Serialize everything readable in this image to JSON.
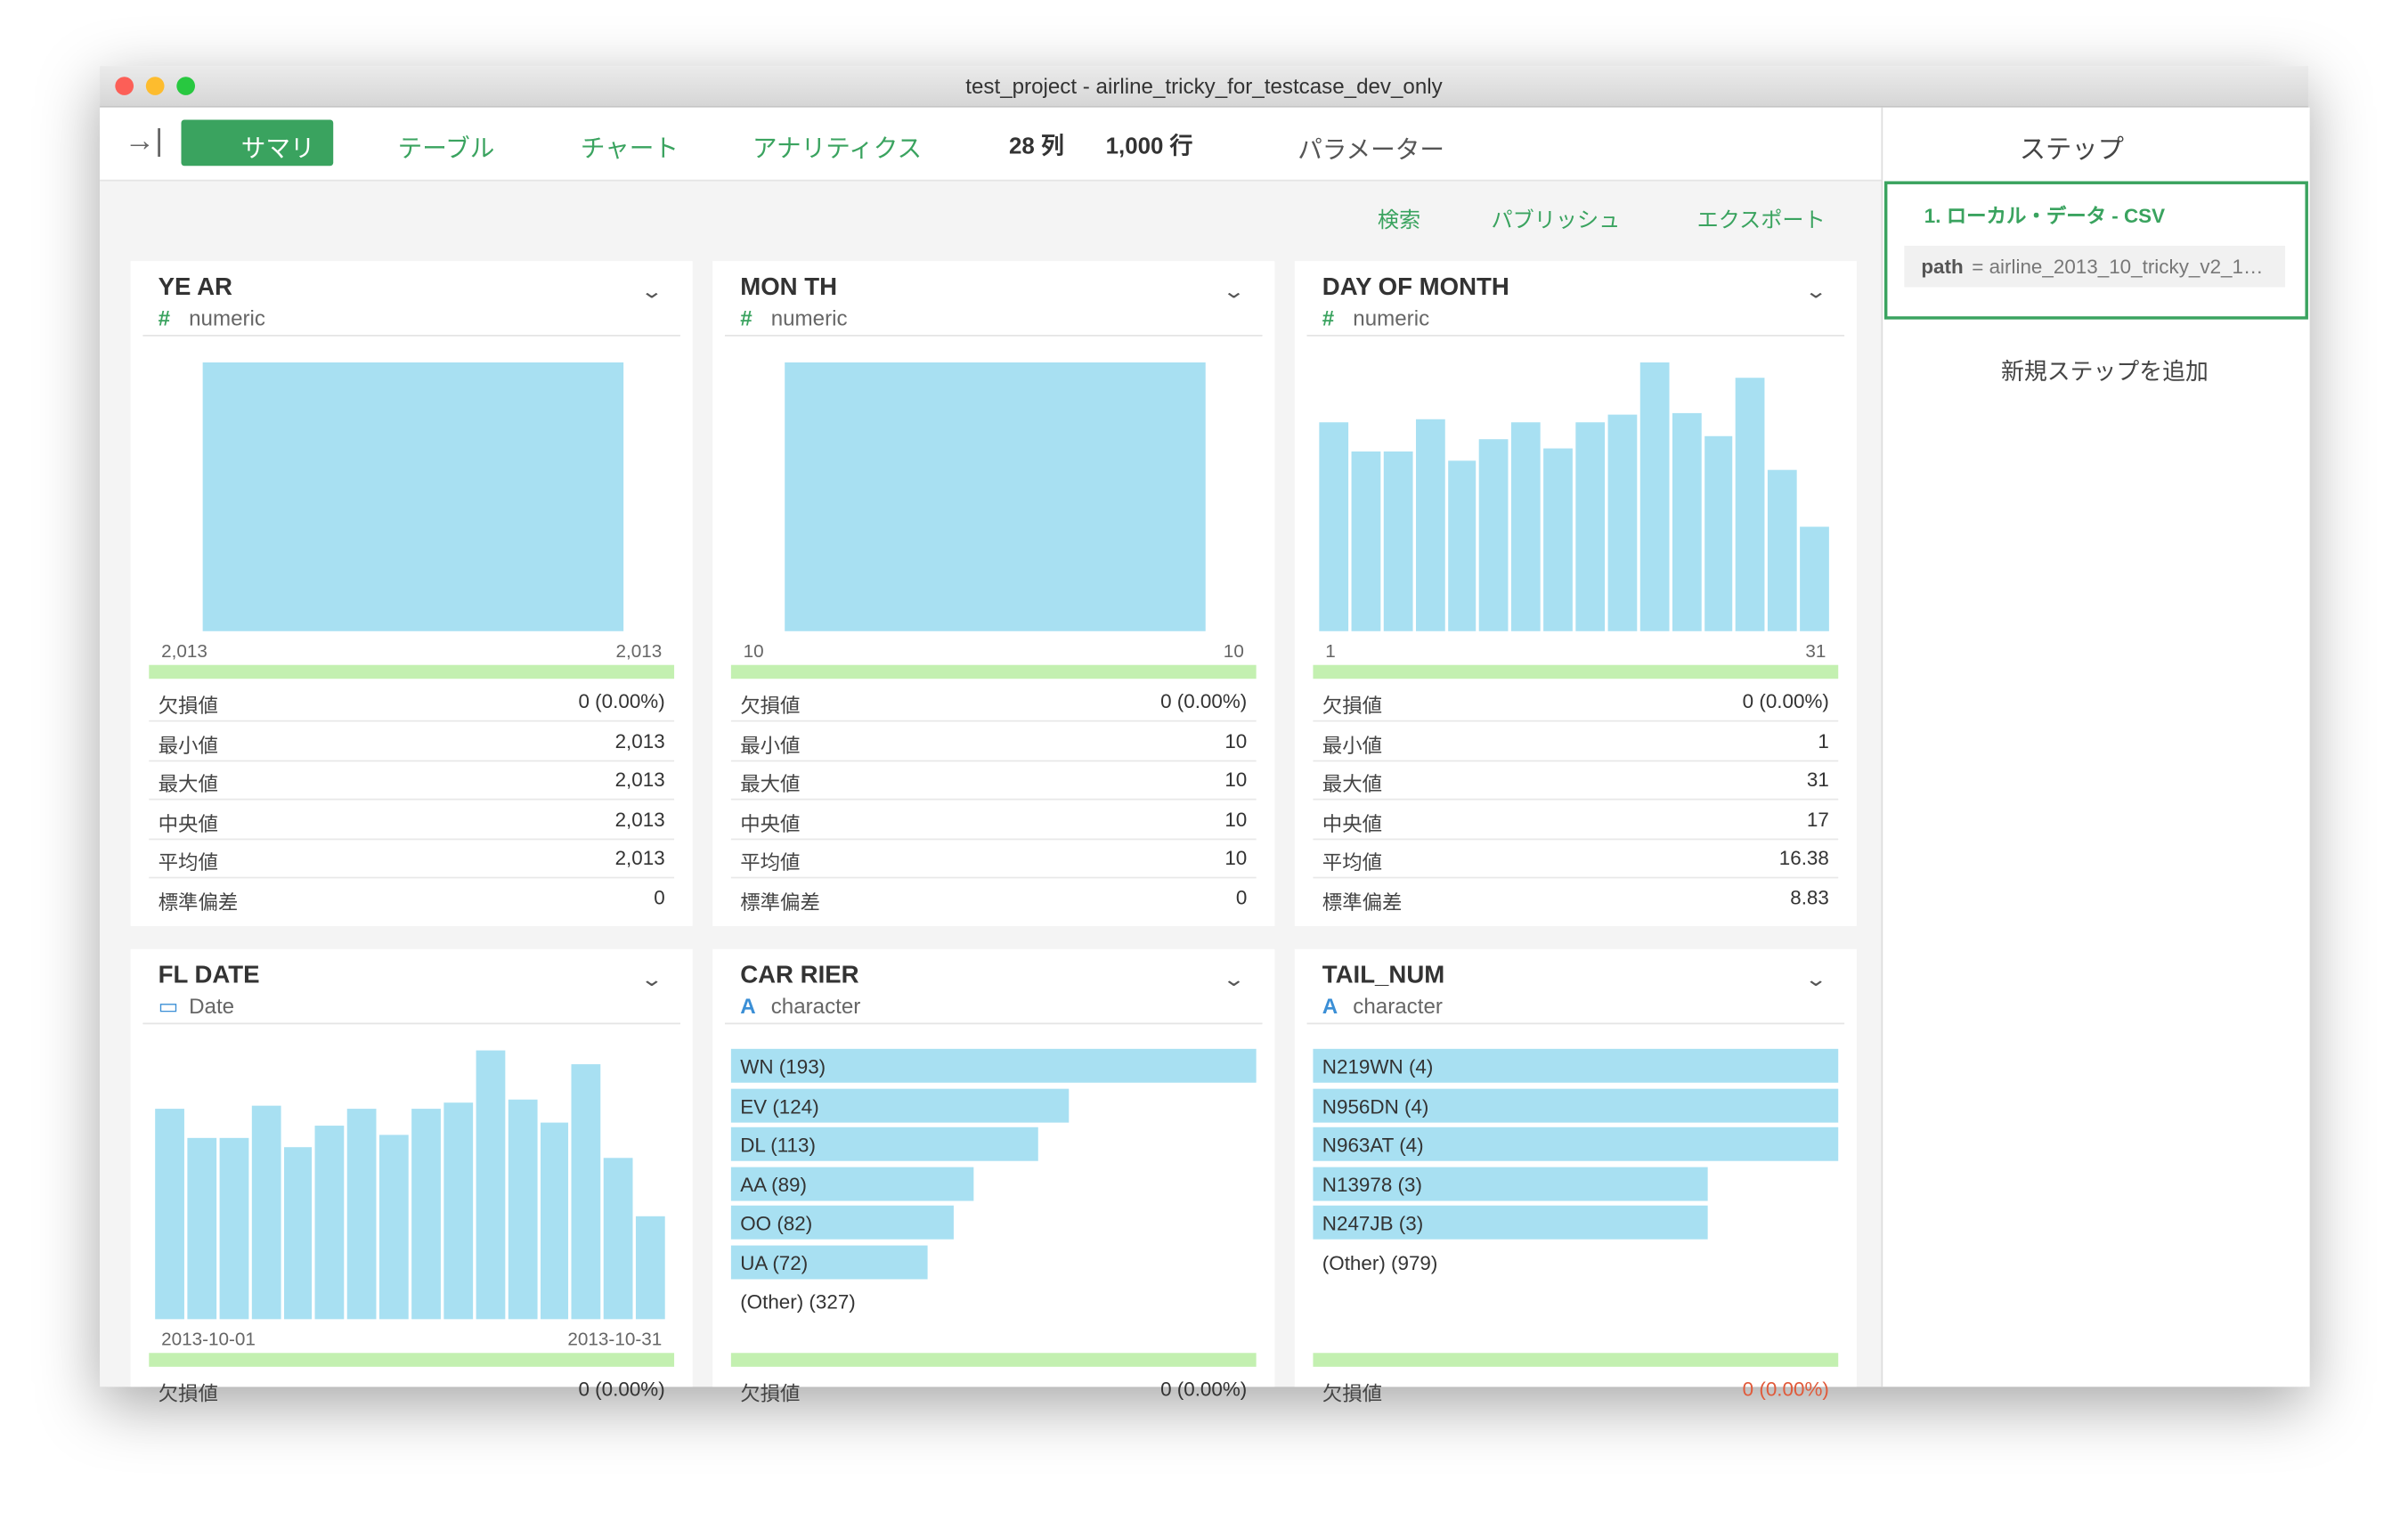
{
  "window": {
    "title": "test_project - airline_tricky_for_testcase_dev_only"
  },
  "toolbar": {
    "tabs": [
      "サマリ",
      "テーブル",
      "チャート",
      "アナリティクス"
    ],
    "columns": "28 列",
    "rows": "1,000 行",
    "parameters": "パラメーター"
  },
  "actions": [
    "検索",
    "パブリッシュ",
    "エクスポート"
  ],
  "steps_panel": {
    "title": "ステップ",
    "step": {
      "name": "1. ローカル・データ - CSV",
      "key": "path",
      "value": "= airline_2013_10_tricky_v2_1…"
    },
    "add": "新規ステップを追加"
  },
  "cards": [
    {
      "name": "YE AR",
      "type_icon": "#",
      "type": "numeric",
      "chart": "hist",
      "bars": [
        175
      ],
      "axis": [
        "2,013",
        "2,013"
      ],
      "stats": [
        [
          "欠損値",
          "0 (0.00%)"
        ],
        [
          "最小値",
          "2,013"
        ],
        [
          "最大値",
          "2,013"
        ],
        [
          "中央値",
          "2,013"
        ],
        [
          "平均値",
          "2,013"
        ],
        [
          "標準偏差",
          "0"
        ]
      ]
    },
    {
      "name": "MON TH",
      "type_icon": "#",
      "type": "numeric",
      "chart": "hist",
      "bars": [
        175
      ],
      "axis": [
        "10",
        "10"
      ],
      "stats": [
        [
          "欠損値",
          "0 (0.00%)"
        ],
        [
          "最小値",
          "10"
        ],
        [
          "最大値",
          "10"
        ],
        [
          "中央値",
          "10"
        ],
        [
          "平均値",
          "10"
        ],
        [
          "標準偏差",
          "0"
        ]
      ]
    },
    {
      "name": "DAY OF MONTH",
      "type_icon": "#",
      "type": "numeric",
      "chart": "hist",
      "bars": [
        136,
        117,
        117,
        138,
        111,
        125,
        136,
        119,
        136,
        141,
        175,
        142,
        127,
        165,
        105,
        68
      ],
      "axis": [
        "1",
        "31"
      ],
      "stats": [
        [
          "欠損値",
          "0 (0.00%)"
        ],
        [
          "最小値",
          "1"
        ],
        [
          "最大値",
          "31"
        ],
        [
          "中央値",
          "17"
        ],
        [
          "平均値",
          "16.38"
        ],
        [
          "標準偏差",
          "8.83"
        ]
      ]
    },
    {
      "name": "FL DATE",
      "type_icon": "▭",
      "type": "Date",
      "chart": "hist",
      "bars": [
        136,
        117,
        117,
        138,
        111,
        125,
        136,
        119,
        136,
        140,
        174,
        142,
        127,
        165,
        104,
        67
      ],
      "axis": [
        "2013-10-01",
        "2013-10-31"
      ],
      "stats": [
        [
          "欠損値",
          "0 (0.00%)"
        ]
      ]
    },
    {
      "name": "CAR RIER",
      "type_icon": "A",
      "type": "character",
      "chart": "top",
      "items": [
        {
          "label": "WN (193)",
          "value": 193
        },
        {
          "label": "EV (124)",
          "value": 124
        },
        {
          "label": "DL (113)",
          "value": 113
        },
        {
          "label": "AA (89)",
          "value": 89
        },
        {
          "label": "OO (82)",
          "value": 82
        },
        {
          "label": "UA (72)",
          "value": 72
        },
        {
          "label": "(Other) (327)"
        }
      ],
      "stats": [
        [
          "欠損値",
          "0 (0.00%)"
        ]
      ]
    },
    {
      "name": "TAIL_NUM",
      "type_icon": "A",
      "type": "character",
      "chart": "top",
      "items": [
        {
          "label": "N219WN (4)",
          "value": 4
        },
        {
          "label": "N956DN (4)",
          "value": 4
        },
        {
          "label": "N963AT (4)",
          "value": 4
        },
        {
          "label": "N13978 (3)",
          "value": 3
        },
        {
          "label": "N247JB (3)",
          "value": 3
        },
        {
          "label": "(Other) (979)"
        }
      ],
      "stats": [
        [
          "欠損値",
          "0 (0.00%)"
        ]
      ]
    }
  ]
}
